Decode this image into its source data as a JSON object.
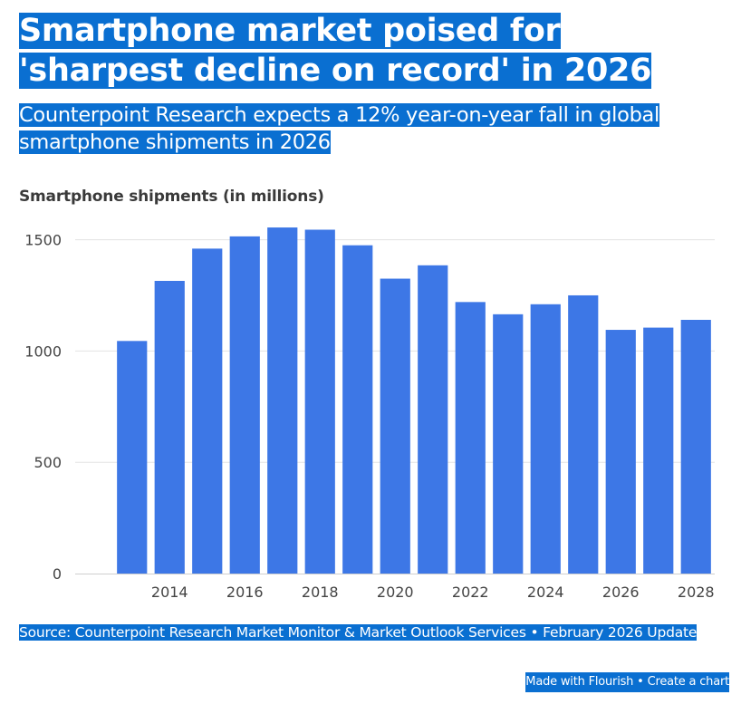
{
  "header": {
    "title": "Smartphone market poised for 'sharpest decline on record' in 2026",
    "subtitle": "Counterpoint Research expects a 12% year-on-year fall in global smartphone shipments in 2026"
  },
  "colors": {
    "bar": "#3d77e6",
    "highlight": "#0a6fd1",
    "grid": "#e3e3e3"
  },
  "chart_data": {
    "type": "bar",
    "title": "Smartphone shipments (in millions)",
    "xlabel": "",
    "ylabel": "",
    "categories": [
      "2013",
      "2014",
      "2015",
      "2016",
      "2017",
      "2018",
      "2019",
      "2020",
      "2021",
      "2022",
      "2023",
      "2024",
      "2025",
      "2026",
      "2027",
      "2028"
    ],
    "values": [
      1045,
      1315,
      1460,
      1515,
      1555,
      1545,
      1475,
      1325,
      1385,
      1220,
      1165,
      1210,
      1250,
      1095,
      1105,
      1140
    ],
    "x_tick_labels": [
      "2014",
      "2016",
      "2018",
      "2020",
      "2022",
      "2024",
      "2026",
      "2028"
    ],
    "y_ticks": [
      0,
      500,
      1000,
      1500
    ],
    "ylim": [
      0,
      1600
    ],
    "grid": true,
    "legend": "none"
  },
  "footer": {
    "source": "Source: Counterpoint Research Market Monitor & Market Outlook Services • February 2026 Update",
    "made_with": "Made with Flourish",
    "separator": " • ",
    "create_chart": "Create a chart"
  }
}
